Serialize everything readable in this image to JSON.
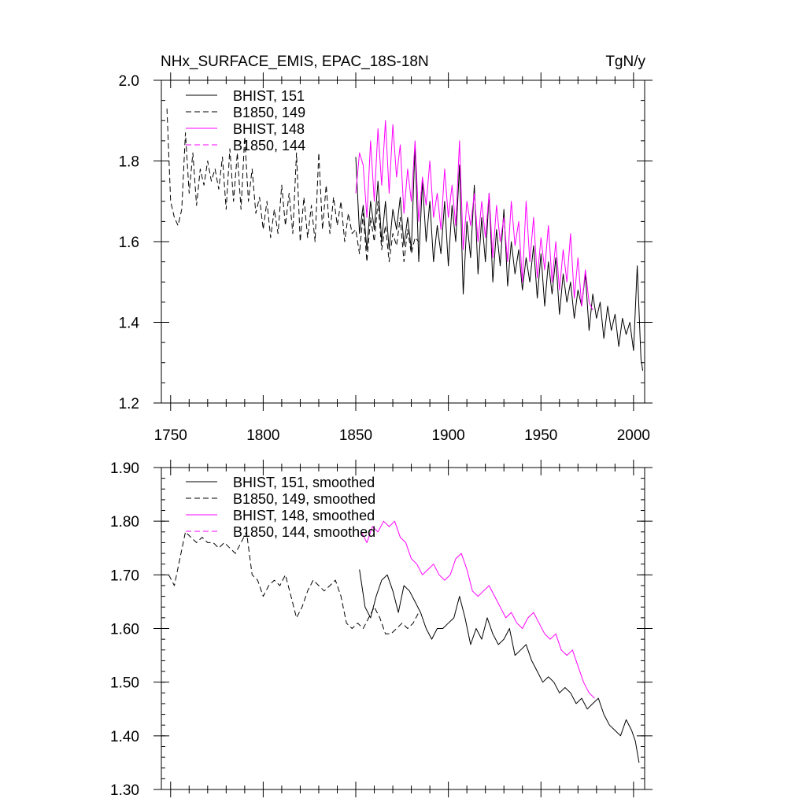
{
  "figure": {
    "title": "NHx_SURFACE_EMIS, EPAC_18S-18N",
    "units": "TgN/y"
  },
  "chart_data": [
    {
      "type": "line",
      "xlim": [
        1745,
        2006
      ],
      "ylim": [
        1.2,
        2.0
      ],
      "x_ticks": [
        1750,
        1800,
        1850,
        1900,
        1950,
        2000
      ],
      "x_tick_labels": [
        "1750",
        "1800",
        "1850",
        "1900",
        "1950",
        "2000"
      ],
      "y_ticks": [
        1.2,
        1.4,
        1.6,
        1.8,
        2.0
      ],
      "y_tick_labels": [
        "1.2",
        "1.4",
        "1.6",
        "1.8",
        "2.0"
      ],
      "legend_placement": "top-left",
      "series": [
        {
          "name": "BHIST, 151",
          "color": "#000000",
          "dash": "solid",
          "x": [
            1850,
            1852,
            1854,
            1856,
            1858,
            1860,
            1862,
            1864,
            1866,
            1868,
            1870,
            1872,
            1874,
            1876,
            1878,
            1880,
            1882,
            1884,
            1886,
            1888,
            1890,
            1892,
            1894,
            1896,
            1898,
            1900,
            1902,
            1904,
            1906,
            1908,
            1910,
            1912,
            1914,
            1916,
            1918,
            1920,
            1922,
            1924,
            1926,
            1928,
            1930,
            1932,
            1934,
            1936,
            1938,
            1940,
            1942,
            1944,
            1946,
            1948,
            1950,
            1952,
            1954,
            1956,
            1958,
            1960,
            1962,
            1964,
            1966,
            1968,
            1970,
            1972,
            1974,
            1976,
            1978,
            1980,
            1982,
            1984,
            1986,
            1988,
            1990,
            1992,
            1994,
            1996,
            1998,
            2000,
            2002,
            2004,
            2005
          ],
          "y": [
            1.81,
            1.62,
            1.69,
            1.58,
            1.7,
            1.63,
            1.75,
            1.6,
            1.7,
            1.58,
            1.68,
            1.63,
            1.71,
            1.59,
            1.66,
            1.58,
            1.84,
            1.55,
            1.75,
            1.6,
            1.7,
            1.55,
            1.64,
            1.57,
            1.7,
            1.54,
            1.69,
            1.6,
            1.79,
            1.47,
            1.65,
            1.56,
            1.74,
            1.52,
            1.66,
            1.55,
            1.72,
            1.5,
            1.63,
            1.54,
            1.68,
            1.49,
            1.6,
            1.52,
            1.58,
            1.48,
            1.56,
            1.5,
            1.59,
            1.46,
            1.57,
            1.44,
            1.55,
            1.47,
            1.56,
            1.42,
            1.52,
            1.45,
            1.5,
            1.41,
            1.48,
            1.44,
            1.52,
            1.38,
            1.47,
            1.41,
            1.45,
            1.36,
            1.44,
            1.38,
            1.42,
            1.34,
            1.41,
            1.37,
            1.4,
            1.33,
            1.54,
            1.31,
            1.28
          ]
        },
        {
          "name": "B1850, 149",
          "color": "#000000",
          "dash": "dashed",
          "x": [
            1748,
            1750,
            1752,
            1754,
            1756,
            1758,
            1760,
            1762,
            1764,
            1766,
            1768,
            1770,
            1772,
            1774,
            1776,
            1778,
            1780,
            1782,
            1784,
            1786,
            1788,
            1790,
            1792,
            1794,
            1796,
            1798,
            1800,
            1802,
            1804,
            1806,
            1808,
            1810,
            1812,
            1814,
            1816,
            1818,
            1820,
            1822,
            1824,
            1826,
            1828,
            1830,
            1832,
            1834,
            1836,
            1838,
            1840,
            1842,
            1844,
            1846,
            1848,
            1850,
            1852,
            1854,
            1856,
            1858,
            1860,
            1862,
            1864,
            1866,
            1868,
            1870,
            1872,
            1874,
            1876,
            1878,
            1880,
            1882,
            1884
          ],
          "y": [
            1.93,
            1.7,
            1.66,
            1.64,
            1.68,
            1.87,
            1.72,
            1.82,
            1.69,
            1.78,
            1.74,
            1.8,
            1.75,
            1.78,
            1.73,
            1.81,
            1.68,
            1.83,
            1.7,
            1.82,
            1.68,
            1.86,
            1.7,
            1.78,
            1.67,
            1.71,
            1.63,
            1.7,
            1.61,
            1.68,
            1.62,
            1.74,
            1.64,
            1.72,
            1.62,
            1.82,
            1.6,
            1.71,
            1.61,
            1.69,
            1.6,
            1.82,
            1.63,
            1.74,
            1.62,
            1.71,
            1.64,
            1.7,
            1.6,
            1.67,
            1.62,
            1.63,
            1.57,
            1.67,
            1.55,
            1.66,
            1.6,
            1.7,
            1.58,
            1.64,
            1.55,
            1.62,
            1.59,
            1.66,
            1.55,
            1.63,
            1.57,
            1.61,
            1.6
          ]
        },
        {
          "name": "BHIST, 148",
          "color": "#ff00ff",
          "dash": "solid",
          "x": [
            1850,
            1852,
            1854,
            1856,
            1858,
            1860,
            1862,
            1864,
            1866,
            1868,
            1870,
            1872,
            1874,
            1876,
            1878,
            1880,
            1882,
            1884,
            1886,
            1888,
            1890,
            1892,
            1894,
            1896,
            1898,
            1900,
            1902,
            1904,
            1906,
            1908,
            1910,
            1912,
            1914,
            1916,
            1918,
            1920,
            1922,
            1924,
            1926,
            1928,
            1930,
            1932,
            1934,
            1936,
            1938,
            1940,
            1942,
            1944,
            1946,
            1948,
            1950,
            1952,
            1954,
            1956,
            1958,
            1960,
            1962,
            1964,
            1966,
            1968,
            1970,
            1972,
            1974,
            1976,
            1978
          ],
          "y": [
            1.72,
            1.82,
            1.79,
            1.66,
            1.85,
            1.7,
            1.88,
            1.74,
            1.9,
            1.72,
            1.89,
            1.76,
            1.84,
            1.67,
            1.78,
            1.7,
            1.85,
            1.65,
            1.76,
            1.69,
            1.8,
            1.66,
            1.72,
            1.63,
            1.78,
            1.66,
            1.74,
            1.64,
            1.85,
            1.58,
            1.7,
            1.64,
            1.72,
            1.6,
            1.7,
            1.61,
            1.72,
            1.56,
            1.69,
            1.6,
            1.66,
            1.55,
            1.7,
            1.59,
            1.65,
            1.5,
            1.7,
            1.55,
            1.66,
            1.51,
            1.61,
            1.53,
            1.64,
            1.5,
            1.6,
            1.48,
            1.58,
            1.5,
            1.62,
            1.46,
            1.56,
            1.44,
            1.53,
            1.45,
            1.43
          ]
        },
        {
          "name": "B1850, 144",
          "color": "#ff00ff",
          "dash": "dashed",
          "x": [],
          "y": []
        }
      ]
    },
    {
      "type": "line",
      "xlim": [
        1745,
        2006
      ],
      "ylim": [
        1.3,
        1.9
      ],
      "y_ticks": [
        1.3,
        1.4,
        1.5,
        1.6,
        1.7,
        1.8,
        1.9
      ],
      "y_tick_labels": [
        "1.30",
        "1.40",
        "1.50",
        "1.60",
        "1.70",
        "1.80",
        "1.90"
      ],
      "legend_placement": "top-left",
      "series": [
        {
          "name": "BHIST, 151, smoothed",
          "color": "#000000",
          "dash": "solid",
          "x": [
            1852,
            1855,
            1858,
            1861,
            1864,
            1867,
            1870,
            1873,
            1876,
            1879,
            1882,
            1885,
            1888,
            1891,
            1894,
            1897,
            1900,
            1903,
            1906,
            1909,
            1912,
            1915,
            1918,
            1921,
            1924,
            1927,
            1930,
            1933,
            1936,
            1939,
            1942,
            1945,
            1948,
            1951,
            1954,
            1957,
            1960,
            1963,
            1966,
            1969,
            1972,
            1975,
            1978,
            1981,
            1984,
            1987,
            1990,
            1993,
            1996,
            1999,
            2001,
            2003
          ],
          "y": [
            1.71,
            1.64,
            1.62,
            1.66,
            1.69,
            1.7,
            1.67,
            1.63,
            1.68,
            1.67,
            1.65,
            1.63,
            1.6,
            1.58,
            1.6,
            1.6,
            1.61,
            1.62,
            1.66,
            1.62,
            1.57,
            1.6,
            1.58,
            1.62,
            1.59,
            1.57,
            1.58,
            1.6,
            1.55,
            1.56,
            1.57,
            1.54,
            1.52,
            1.5,
            1.51,
            1.5,
            1.48,
            1.49,
            1.48,
            1.46,
            1.47,
            1.45,
            1.46,
            1.47,
            1.44,
            1.42,
            1.41,
            1.4,
            1.43,
            1.41,
            1.39,
            1.35
          ]
        },
        {
          "name": "B1850, 149, smoothed",
          "color": "#000000",
          "dash": "dashed",
          "x": [
            1749,
            1752,
            1755,
            1758,
            1761,
            1764,
            1767,
            1770,
            1773,
            1776,
            1779,
            1782,
            1785,
            1788,
            1791,
            1794,
            1797,
            1800,
            1803,
            1806,
            1809,
            1812,
            1815,
            1818,
            1821,
            1824,
            1827,
            1830,
            1833,
            1836,
            1839,
            1842,
            1845,
            1848,
            1851,
            1854,
            1857,
            1860,
            1863,
            1866,
            1869,
            1872,
            1875,
            1878,
            1881,
            1884
          ],
          "y": [
            1.7,
            1.68,
            1.73,
            1.78,
            1.77,
            1.76,
            1.77,
            1.76,
            1.76,
            1.75,
            1.76,
            1.75,
            1.74,
            1.76,
            1.78,
            1.7,
            1.69,
            1.66,
            1.68,
            1.69,
            1.68,
            1.7,
            1.66,
            1.62,
            1.64,
            1.67,
            1.69,
            1.68,
            1.67,
            1.68,
            1.69,
            1.66,
            1.61,
            1.6,
            1.61,
            1.6,
            1.62,
            1.64,
            1.62,
            1.59,
            1.59,
            1.6,
            1.61,
            1.6,
            1.61,
            1.63
          ]
        },
        {
          "name": "BHIST, 148, smoothed",
          "color": "#ff00ff",
          "dash": "solid",
          "x": [
            1853,
            1856,
            1859,
            1862,
            1865,
            1868,
            1871,
            1874,
            1877,
            1880,
            1883,
            1886,
            1889,
            1892,
            1895,
            1898,
            1901,
            1904,
            1907,
            1910,
            1913,
            1916,
            1919,
            1922,
            1925,
            1928,
            1931,
            1934,
            1937,
            1940,
            1943,
            1946,
            1949,
            1952,
            1955,
            1958,
            1961,
            1964,
            1967,
            1970,
            1973,
            1976,
            1979
          ],
          "y": [
            1.78,
            1.76,
            1.79,
            1.78,
            1.8,
            1.79,
            1.8,
            1.77,
            1.76,
            1.73,
            1.72,
            1.7,
            1.71,
            1.72,
            1.7,
            1.69,
            1.7,
            1.73,
            1.74,
            1.71,
            1.67,
            1.66,
            1.67,
            1.68,
            1.66,
            1.64,
            1.62,
            1.63,
            1.61,
            1.6,
            1.62,
            1.63,
            1.61,
            1.59,
            1.58,
            1.59,
            1.56,
            1.55,
            1.56,
            1.53,
            1.5,
            1.48,
            1.47
          ]
        },
        {
          "name": "B1850, 144, smoothed",
          "color": "#ff00ff",
          "dash": "dashed",
          "x": [],
          "y": []
        }
      ]
    }
  ]
}
